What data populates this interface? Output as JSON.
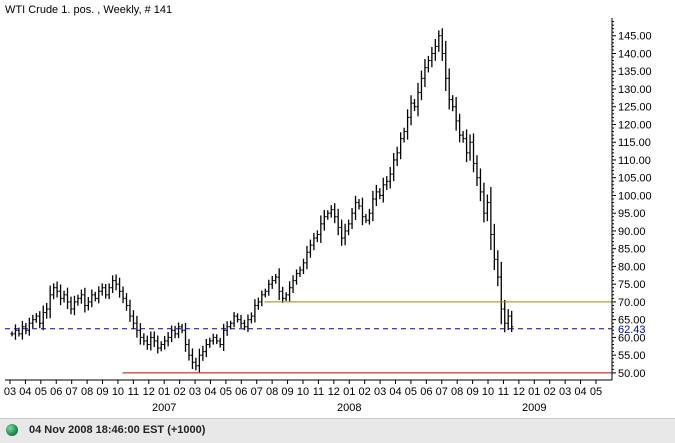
{
  "chart_data": {
    "type": "ohlc",
    "title": "WTI Crude 1. pos. , Weekly, # 141",
    "xlabel": "",
    "ylabel": "",
    "ylim": [
      48,
      150
    ],
    "y_ticks": [
      "50.00",
      "55.00",
      "60.00",
      "65.00",
      "70.00",
      "75.00",
      "80.00",
      "85.00",
      "90.00",
      "95.00",
      "100.00",
      "105.00",
      "110.00",
      "115.00",
      "120.00",
      "125.00",
      "130.00",
      "135.00",
      "140.00",
      "145.00"
    ],
    "x_month_ticks": [
      "03",
      "04",
      "05",
      "06",
      "07",
      "08",
      "09",
      "10",
      "11",
      "12",
      "01",
      "02",
      "03",
      "04",
      "05",
      "06",
      "07",
      "08",
      "09",
      "10",
      "11",
      "12",
      "01",
      "02",
      "03",
      "04",
      "05",
      "06",
      "07",
      "08",
      "09",
      "10",
      "11",
      "12",
      "01",
      "02",
      "03",
      "04",
      "05"
    ],
    "x_year_labels": [
      {
        "label": "2007",
        "month_index": 10
      },
      {
        "label": "2008",
        "month_index": 22
      },
      {
        "label": "2009",
        "month_index": 34
      }
    ],
    "horizontal_lines": [
      {
        "value": 70.0,
        "color": "#a08a00",
        "style": "solid",
        "start_month_index": 16.5
      },
      {
        "value": 62.43,
        "color": "#0000cc",
        "style": "dashed",
        "label": "62.43"
      },
      {
        "value": 50.0,
        "color": "#cc0000",
        "style": "solid",
        "start_month_index": 7.3
      }
    ],
    "weekly_close": [
      61,
      62,
      61,
      63,
      62,
      64,
      65,
      66,
      64,
      67,
      68,
      72,
      74,
      73,
      71,
      72,
      70,
      68,
      70,
      71,
      72,
      69,
      70,
      72,
      71,
      73,
      74,
      72,
      74,
      76,
      75,
      73,
      71,
      69,
      66,
      64,
      62,
      60,
      59,
      58,
      60,
      59,
      57,
      58,
      59,
      60,
      62,
      61,
      63,
      62,
      58,
      55,
      53,
      52,
      55,
      56,
      58,
      59,
      60,
      59,
      58,
      62,
      63,
      64,
      66,
      65,
      64,
      63,
      65,
      66,
      69,
      70,
      72,
      73,
      75,
      76,
      77,
      73,
      71,
      72,
      74,
      76,
      78,
      79,
      81,
      84,
      86,
      88,
      89,
      92,
      94,
      95,
      96,
      94,
      91,
      88,
      90,
      92,
      95,
      98,
      97,
      94,
      93,
      95,
      99,
      101,
      100,
      103,
      104,
      106,
      110,
      112,
      116,
      118,
      122,
      126,
      125,
      129,
      133,
      136,
      138,
      140,
      142,
      145,
      140,
      133,
      127,
      125,
      121,
      117,
      116,
      112,
      115,
      109,
      105,
      101,
      95,
      98,
      89,
      82,
      77,
      68,
      64,
      66,
      63
    ],
    "colors": {
      "bars": "#000000",
      "axis": "#000000",
      "blue_line": "#0000cc",
      "gold_line": "#a08a00",
      "red_line": "#cc0000",
      "status_dot": "#2a9a58"
    }
  },
  "footer": {
    "status_text": "04 Nov 2008 18:46:00  EST (+1000)"
  }
}
